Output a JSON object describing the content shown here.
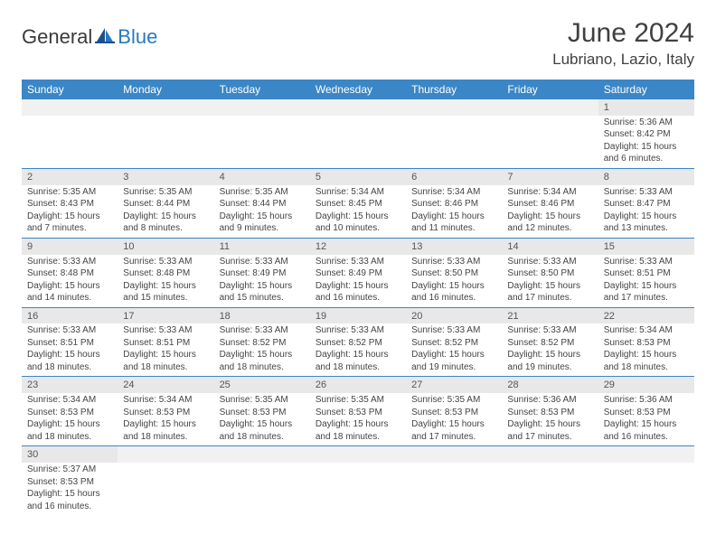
{
  "brand": {
    "text1": "General",
    "text2": "Blue"
  },
  "title": "June 2024",
  "location": "Lubriano, Lazio, Italy",
  "colors": {
    "header_bg": "#3b86c6",
    "header_text": "#ffffff",
    "daynum_bg": "#e8e8e8",
    "border": "#3b86c6",
    "brand_blue": "#2a78bf",
    "body_text": "#333333"
  },
  "weekdays": [
    "Sunday",
    "Monday",
    "Tuesday",
    "Wednesday",
    "Thursday",
    "Friday",
    "Saturday"
  ],
  "label_sunrise": "Sunrise: ",
  "label_sunset": "Sunset: ",
  "label_daylight": "Daylight: ",
  "weeks": [
    [
      null,
      null,
      null,
      null,
      null,
      null,
      {
        "d": "1",
        "sr": "5:36 AM",
        "ss": "8:42 PM",
        "dl": "15 hours and 6 minutes."
      }
    ],
    [
      {
        "d": "2",
        "sr": "5:35 AM",
        "ss": "8:43 PM",
        "dl": "15 hours and 7 minutes."
      },
      {
        "d": "3",
        "sr": "5:35 AM",
        "ss": "8:44 PM",
        "dl": "15 hours and 8 minutes."
      },
      {
        "d": "4",
        "sr": "5:35 AM",
        "ss": "8:44 PM",
        "dl": "15 hours and 9 minutes."
      },
      {
        "d": "5",
        "sr": "5:34 AM",
        "ss": "8:45 PM",
        "dl": "15 hours and 10 minutes."
      },
      {
        "d": "6",
        "sr": "5:34 AM",
        "ss": "8:46 PM",
        "dl": "15 hours and 11 minutes."
      },
      {
        "d": "7",
        "sr": "5:34 AM",
        "ss": "8:46 PM",
        "dl": "15 hours and 12 minutes."
      },
      {
        "d": "8",
        "sr": "5:33 AM",
        "ss": "8:47 PM",
        "dl": "15 hours and 13 minutes."
      }
    ],
    [
      {
        "d": "9",
        "sr": "5:33 AM",
        "ss": "8:48 PM",
        "dl": "15 hours and 14 minutes."
      },
      {
        "d": "10",
        "sr": "5:33 AM",
        "ss": "8:48 PM",
        "dl": "15 hours and 15 minutes."
      },
      {
        "d": "11",
        "sr": "5:33 AM",
        "ss": "8:49 PM",
        "dl": "15 hours and 15 minutes."
      },
      {
        "d": "12",
        "sr": "5:33 AM",
        "ss": "8:49 PM",
        "dl": "15 hours and 16 minutes."
      },
      {
        "d": "13",
        "sr": "5:33 AM",
        "ss": "8:50 PM",
        "dl": "15 hours and 16 minutes."
      },
      {
        "d": "14",
        "sr": "5:33 AM",
        "ss": "8:50 PM",
        "dl": "15 hours and 17 minutes."
      },
      {
        "d": "15",
        "sr": "5:33 AM",
        "ss": "8:51 PM",
        "dl": "15 hours and 17 minutes."
      }
    ],
    [
      {
        "d": "16",
        "sr": "5:33 AM",
        "ss": "8:51 PM",
        "dl": "15 hours and 18 minutes."
      },
      {
        "d": "17",
        "sr": "5:33 AM",
        "ss": "8:51 PM",
        "dl": "15 hours and 18 minutes."
      },
      {
        "d": "18",
        "sr": "5:33 AM",
        "ss": "8:52 PM",
        "dl": "15 hours and 18 minutes."
      },
      {
        "d": "19",
        "sr": "5:33 AM",
        "ss": "8:52 PM",
        "dl": "15 hours and 18 minutes."
      },
      {
        "d": "20",
        "sr": "5:33 AM",
        "ss": "8:52 PM",
        "dl": "15 hours and 19 minutes."
      },
      {
        "d": "21",
        "sr": "5:33 AM",
        "ss": "8:52 PM",
        "dl": "15 hours and 19 minutes."
      },
      {
        "d": "22",
        "sr": "5:34 AM",
        "ss": "8:53 PM",
        "dl": "15 hours and 18 minutes."
      }
    ],
    [
      {
        "d": "23",
        "sr": "5:34 AM",
        "ss": "8:53 PM",
        "dl": "15 hours and 18 minutes."
      },
      {
        "d": "24",
        "sr": "5:34 AM",
        "ss": "8:53 PM",
        "dl": "15 hours and 18 minutes."
      },
      {
        "d": "25",
        "sr": "5:35 AM",
        "ss": "8:53 PM",
        "dl": "15 hours and 18 minutes."
      },
      {
        "d": "26",
        "sr": "5:35 AM",
        "ss": "8:53 PM",
        "dl": "15 hours and 18 minutes."
      },
      {
        "d": "27",
        "sr": "5:35 AM",
        "ss": "8:53 PM",
        "dl": "15 hours and 17 minutes."
      },
      {
        "d": "28",
        "sr": "5:36 AM",
        "ss": "8:53 PM",
        "dl": "15 hours and 17 minutes."
      },
      {
        "d": "29",
        "sr": "5:36 AM",
        "ss": "8:53 PM",
        "dl": "15 hours and 16 minutes."
      }
    ],
    [
      {
        "d": "30",
        "sr": "5:37 AM",
        "ss": "8:53 PM",
        "dl": "15 hours and 16 minutes."
      },
      null,
      null,
      null,
      null,
      null,
      null
    ]
  ]
}
